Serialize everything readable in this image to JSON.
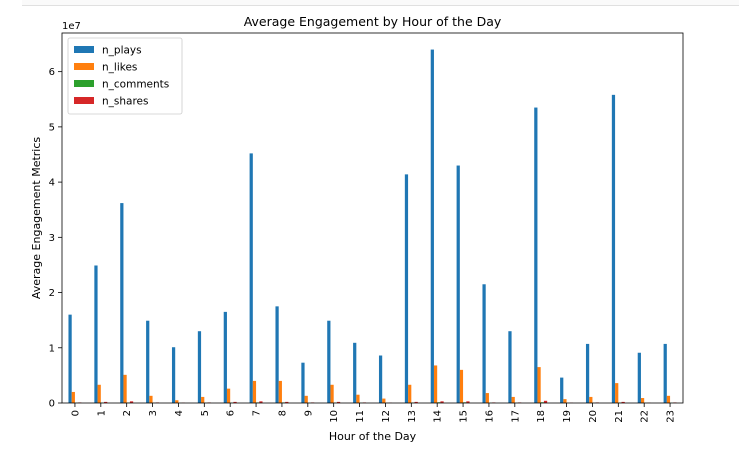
{
  "chart_data": {
    "type": "bar",
    "title": "Average Engagement by Hour of the Day",
    "xlabel": "Hour of the Day",
    "ylabel": "Average Engagement Metrics",
    "y_scale_label": "1e7",
    "y_multiplier": 10000000,
    "ylim": [
      0,
      6.7
    ],
    "yticks": [
      0,
      1,
      2,
      3,
      4,
      5,
      6
    ],
    "categories": [
      "0",
      "1",
      "2",
      "3",
      "4",
      "5",
      "6",
      "7",
      "8",
      "9",
      "10",
      "11",
      "12",
      "13",
      "14",
      "15",
      "16",
      "17",
      "18",
      "19",
      "20",
      "21",
      "22",
      "23"
    ],
    "legend_position": "top-left",
    "grid": false,
    "series": [
      {
        "name": "n_plays",
        "color": "#1f77b4",
        "values": [
          1.6,
          2.49,
          3.62,
          1.49,
          1.01,
          1.3,
          1.65,
          4.52,
          1.75,
          0.73,
          1.49,
          1.09,
          0.86,
          4.14,
          6.4,
          4.3,
          2.15,
          1.3,
          5.35,
          0.46,
          1.07,
          5.58,
          0.91,
          1.07
        ]
      },
      {
        "name": "n_likes",
        "color": "#ff7f0e",
        "values": [
          0.2,
          0.33,
          0.51,
          0.13,
          0.05,
          0.11,
          0.26,
          0.4,
          0.4,
          0.13,
          0.33,
          0.15,
          0.08,
          0.33,
          0.68,
          0.6,
          0.18,
          0.11,
          0.65,
          0.07,
          0.11,
          0.36,
          0.09,
          0.13
        ]
      },
      {
        "name": "n_comments",
        "color": "#2ca02c",
        "values": [
          0.004,
          0.006,
          0.008,
          0.003,
          0.002,
          0.003,
          0.005,
          0.01,
          0.01,
          0.003,
          0.006,
          0.004,
          0.002,
          0.008,
          0.013,
          0.012,
          0.004,
          0.003,
          0.013,
          0.002,
          0.003,
          0.008,
          0.002,
          0.003
        ]
      },
      {
        "name": "n_shares",
        "color": "#d62728",
        "values": [
          0.01,
          0.02,
          0.03,
          0.01,
          0.005,
          0.01,
          0.02,
          0.03,
          0.02,
          0.01,
          0.02,
          0.01,
          0.005,
          0.02,
          0.03,
          0.03,
          0.01,
          0.01,
          0.04,
          0.005,
          0.01,
          0.02,
          0.005,
          0.01
        ]
      }
    ]
  }
}
